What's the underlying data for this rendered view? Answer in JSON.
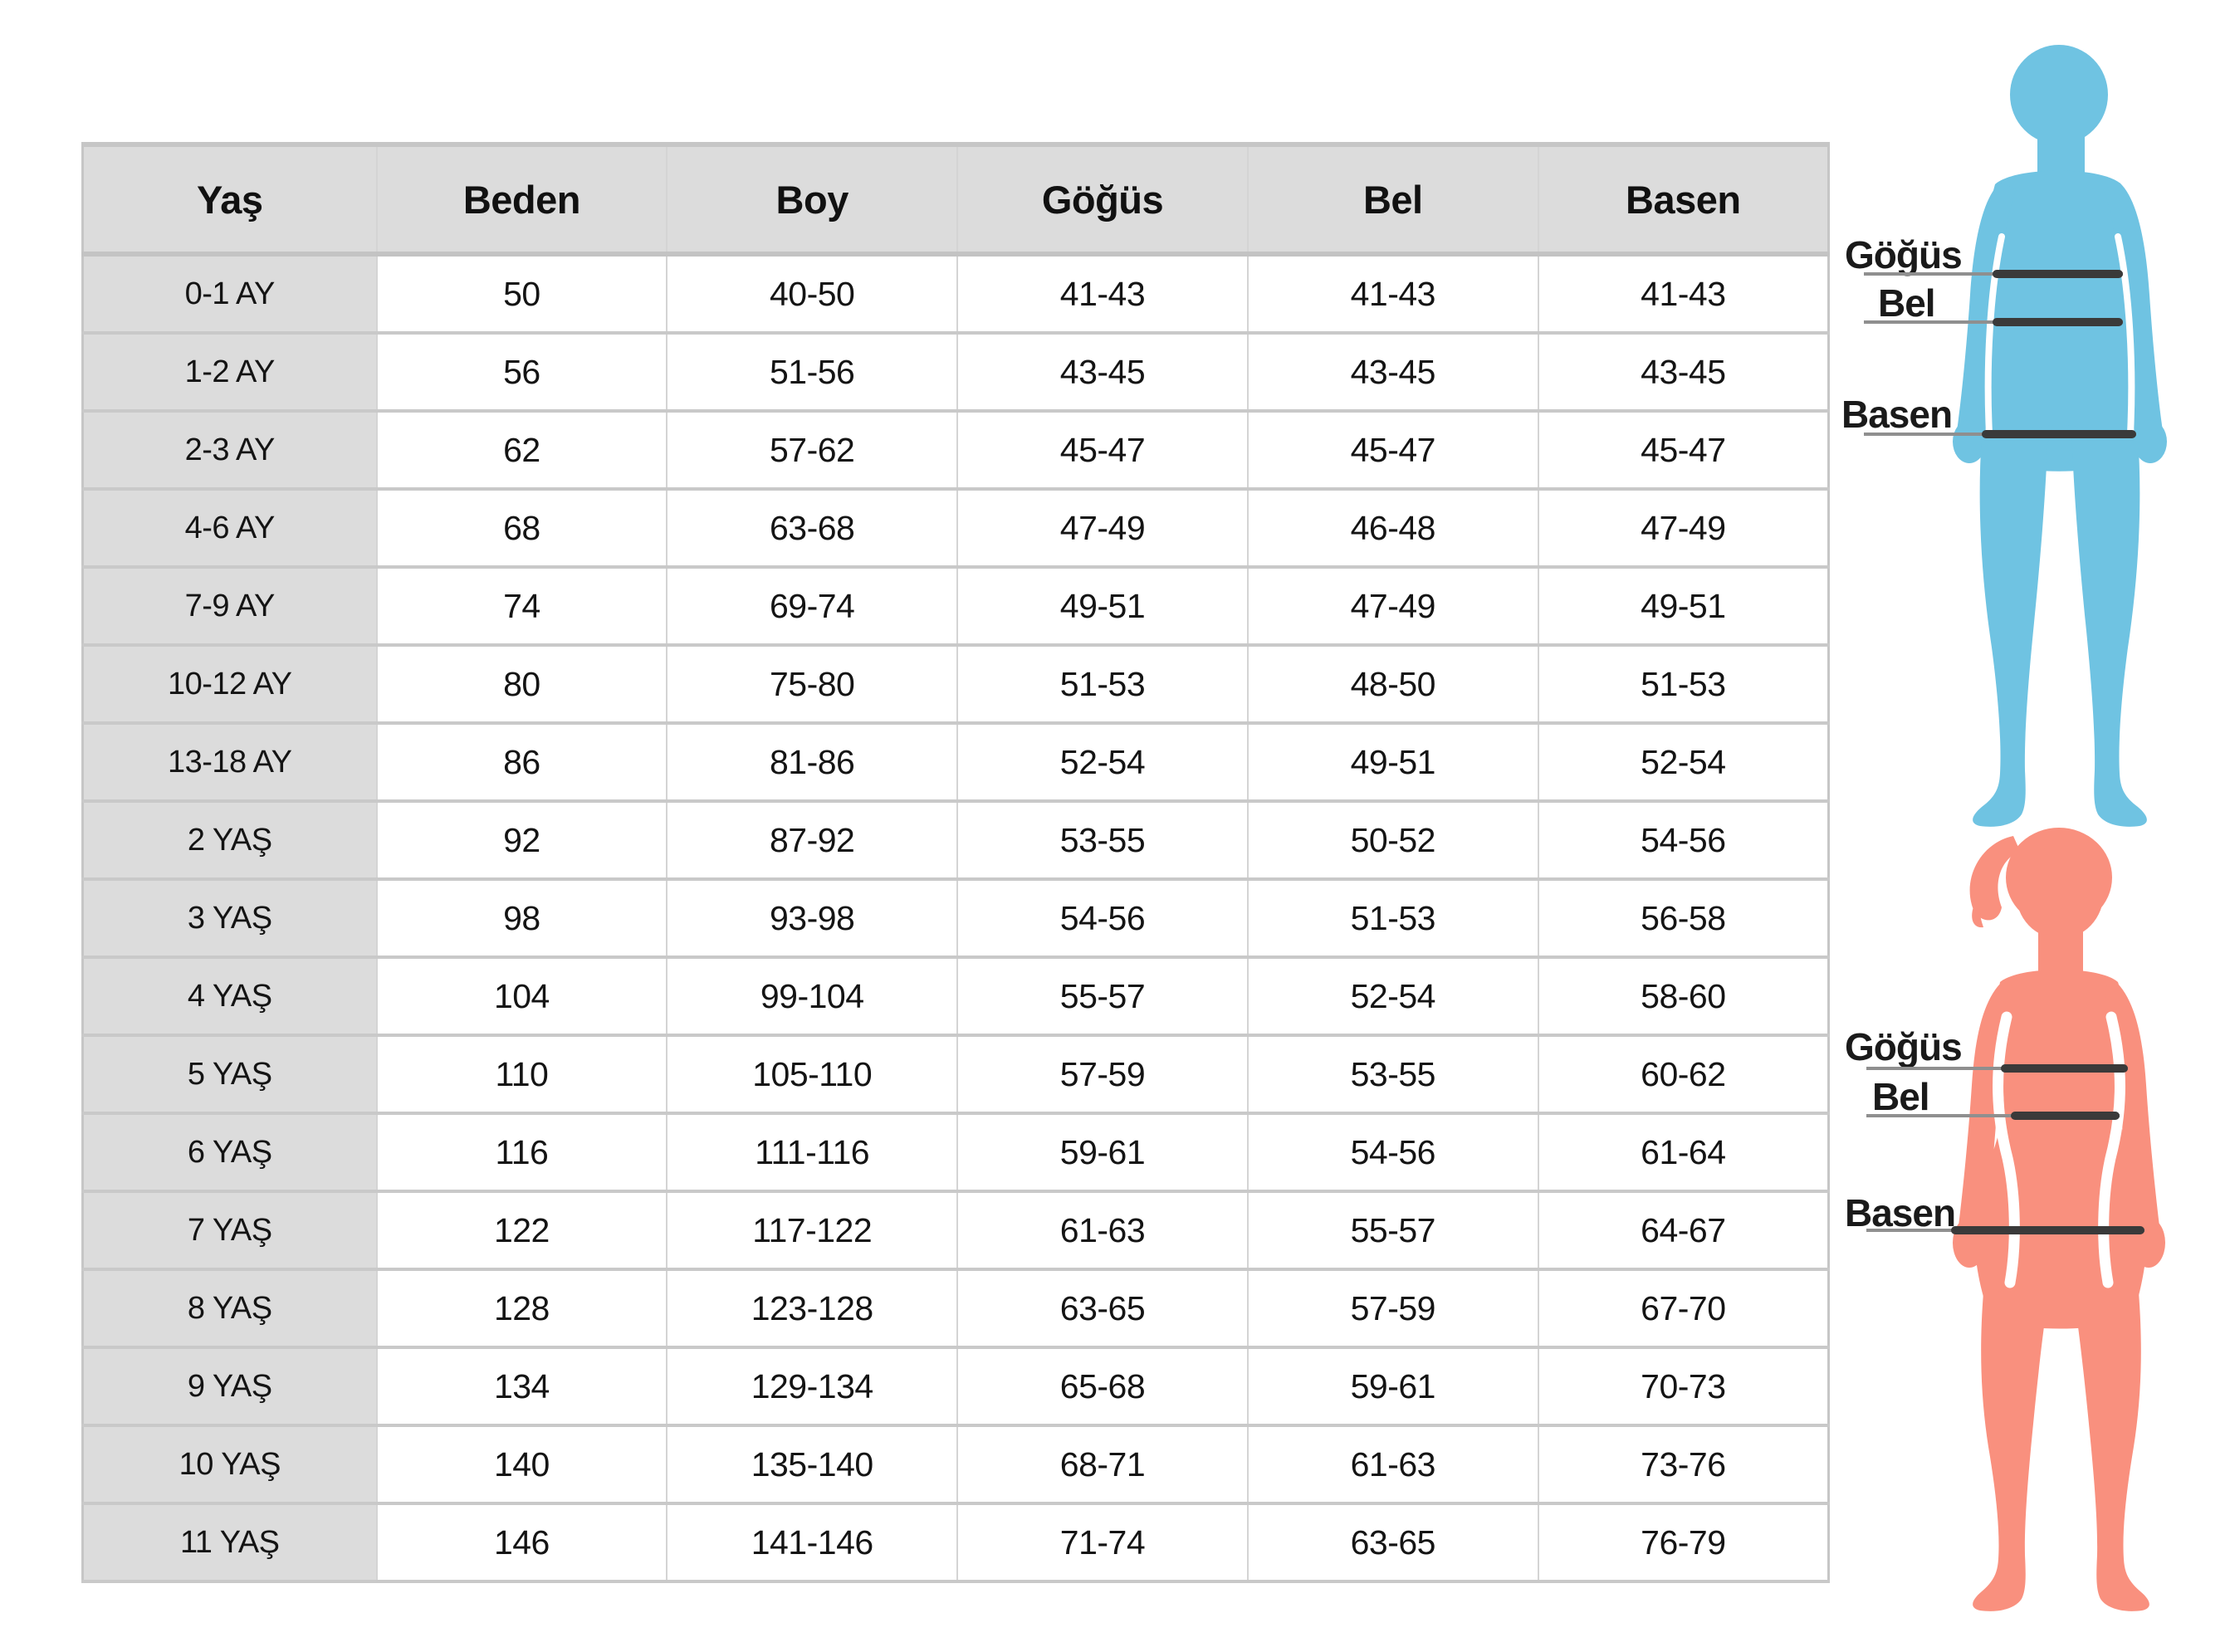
{
  "page": {
    "description_label": "children size chart"
  },
  "colors": {
    "boy": "#6fc3e2",
    "girl": "#f9907e",
    "header-bg": "#dcdcdc",
    "label-col-bg": "#dcdcdc",
    "text": "#141414",
    "measure-thin": "#8f8f8f",
    "measure-thick": "#3a3a3a"
  },
  "labels": {
    "chest": "Göğüs",
    "waist": "Bel",
    "hips": "Basen"
  },
  "chart_data": {
    "type": "table",
    "title": "",
    "headers": [
      "Yaş",
      "Beden",
      "Boy",
      "Göğüs",
      "Bel",
      "Basen"
    ],
    "rows": [
      [
        "0-1 AY",
        "50",
        "40-50",
        "41-43",
        "41-43",
        "41-43"
      ],
      [
        "1-2 AY",
        "56",
        "51-56",
        "43-45",
        "43-45",
        "43-45"
      ],
      [
        "2-3 AY",
        "62",
        "57-62",
        "45-47",
        "45-47",
        "45-47"
      ],
      [
        "4-6 AY",
        "68",
        "63-68",
        "47-49",
        "46-48",
        "47-49"
      ],
      [
        "7-9 AY",
        "74",
        "69-74",
        "49-51",
        "47-49",
        "49-51"
      ],
      [
        "10-12 AY",
        "80",
        "75-80",
        "51-53",
        "48-50",
        "51-53"
      ],
      [
        "13-18 AY",
        "86",
        "81-86",
        "52-54",
        "49-51",
        "52-54"
      ],
      [
        "2 YAŞ",
        "92",
        "87-92",
        "53-55",
        "50-52",
        "54-56"
      ],
      [
        "3 YAŞ",
        "98",
        "93-98",
        "54-56",
        "51-53",
        "56-58"
      ],
      [
        "4 YAŞ",
        "104",
        "99-104",
        "55-57",
        "52-54",
        "58-60"
      ],
      [
        "5 YAŞ",
        "110",
        "105-110",
        "57-59",
        "53-55",
        "60-62"
      ],
      [
        "6 YAŞ",
        "116",
        "111-116",
        "59-61",
        "54-56",
        "61-64"
      ],
      [
        "7 YAŞ",
        "122",
        "117-122",
        "61-63",
        "55-57",
        "64-67"
      ],
      [
        "8 YAŞ",
        "128",
        "123-128",
        "63-65",
        "57-59",
        "67-70"
      ],
      [
        "9 YAŞ",
        "134",
        "129-134",
        "65-68",
        "59-61",
        "70-73"
      ],
      [
        "10 YAŞ",
        "140",
        "135-140",
        "68-71",
        "61-63",
        "73-76"
      ],
      [
        "11 YAŞ",
        "146",
        "141-146",
        "71-74",
        "63-65",
        "76-79"
      ]
    ]
  }
}
